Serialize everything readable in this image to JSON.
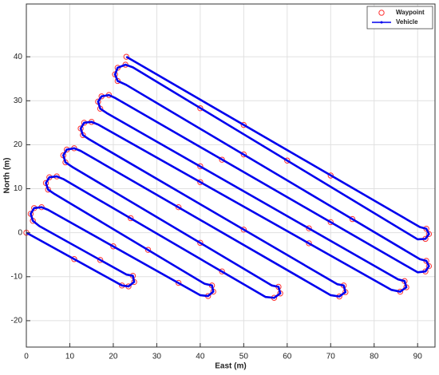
{
  "chart_data": {
    "type": "line",
    "xlabel": "East (m)",
    "ylabel": "North (m)",
    "xlim": [
      0,
      94
    ],
    "ylim": [
      -26,
      52
    ],
    "xticks": [
      0,
      10,
      20,
      30,
      40,
      50,
      60,
      70,
      80,
      90
    ],
    "yticks": [
      -20,
      -10,
      0,
      10,
      20,
      30,
      40
    ],
    "grid": true,
    "legend": "upper right",
    "series": [
      {
        "name": "Waypoint",
        "color": "#ff3030",
        "style": "markers",
        "x": [
          0,
          11,
          22,
          23.5,
          24.8,
          24.5,
          17,
          1.5,
          1,
          1.8,
          3.5,
          20,
          35,
          41.8,
          43,
          42.7,
          28,
          5,
          4.5,
          5.3,
          7,
          24,
          45,
          57,
          58.4,
          58,
          40,
          9,
          8.5,
          9.3,
          11,
          35,
          72,
          73.4,
          73,
          50,
          13,
          12.5,
          13.3,
          15,
          40,
          65,
          86,
          87.4,
          87,
          65,
          40,
          17,
          16.5,
          17.3,
          19,
          45,
          70,
          91.8,
          92.6,
          92,
          75,
          50,
          21,
          20.4,
          21,
          22.8,
          40,
          60,
          91.8,
          92.6,
          92,
          70,
          50,
          23
        ],
        "values": [
          0,
          -6,
          -12,
          -12.2,
          -11.2,
          -9.8,
          -6.2,
          2.7,
          4.3,
          5.6,
          5.8,
          -3.1,
          -11.4,
          -14.4,
          -13.4,
          -12,
          -3.9,
          9.8,
          11.3,
          12.6,
          12.8,
          3.3,
          -8.8,
          -14.8,
          -13.8,
          -12.3,
          -2.3,
          16,
          17.6,
          18.9,
          19.2,
          5.8,
          -14.5,
          -13.5,
          -12,
          0.7,
          22.2,
          23.7,
          25,
          25.2,
          11.5,
          -2.4,
          -13.4,
          -12.4,
          -11,
          1,
          15.1,
          28.2,
          29.8,
          31,
          31.3,
          16.6,
          2.4,
          -8.8,
          -7.6,
          -6.4,
          3.1,
          17.8,
          34.5,
          36,
          37.5,
          38.2,
          28.3,
          16.4,
          -1.4,
          -0.3,
          0.9,
          13,
          24.5,
          40
        ]
      },
      {
        "name": "Vehicle",
        "color": "#0000ee",
        "style": "lines",
        "x": [
          0,
          22,
          23.5,
          24.8,
          24.5,
          23,
          3,
          1.5,
          1,
          1.8,
          3.5,
          5,
          40,
          41.8,
          43,
          42.7,
          41,
          6.5,
          5,
          4.5,
          5.3,
          7,
          8.5,
          55,
          57,
          58.4,
          58,
          56.5,
          10.5,
          9,
          8.5,
          9.3,
          11,
          12.5,
          70,
          72,
          73.4,
          73,
          71.5,
          14.5,
          13,
          12.5,
          13.3,
          15,
          16.5,
          84,
          86,
          87.4,
          87,
          85.5,
          18.5,
          17,
          16.5,
          17.3,
          19,
          20.5,
          90,
          91.8,
          92.6,
          92,
          90.5,
          23,
          21,
          20.4,
          21,
          22.8,
          24.5,
          90,
          91.8,
          92.6,
          92,
          90.5,
          23
        ],
        "values": [
          0,
          -12,
          -12.2,
          -11.2,
          -9.8,
          -9.5,
          1.5,
          2.7,
          4.3,
          5.6,
          5.8,
          5.2,
          -14.2,
          -14.4,
          -13.4,
          -12,
          -11.6,
          8.8,
          9.8,
          11.3,
          12.6,
          12.8,
          12.2,
          -14.6,
          -14.8,
          -13.8,
          -12.3,
          -12,
          15,
          16,
          17.6,
          18.9,
          19.2,
          18.6,
          -14.2,
          -14.5,
          -13.5,
          -12,
          -11.7,
          21.2,
          22.2,
          23.7,
          25,
          25.2,
          24.6,
          -13,
          -13.4,
          -12.4,
          -11,
          -10.6,
          27.2,
          28.2,
          29.8,
          31,
          31.3,
          30.6,
          -9,
          -8.8,
          -7.6,
          -6.4,
          -6,
          33.6,
          34.5,
          36,
          37.5,
          38.2,
          37.6,
          -1.5,
          -1.4,
          -0.3,
          0.9,
          1.3,
          40
        ]
      }
    ]
  }
}
